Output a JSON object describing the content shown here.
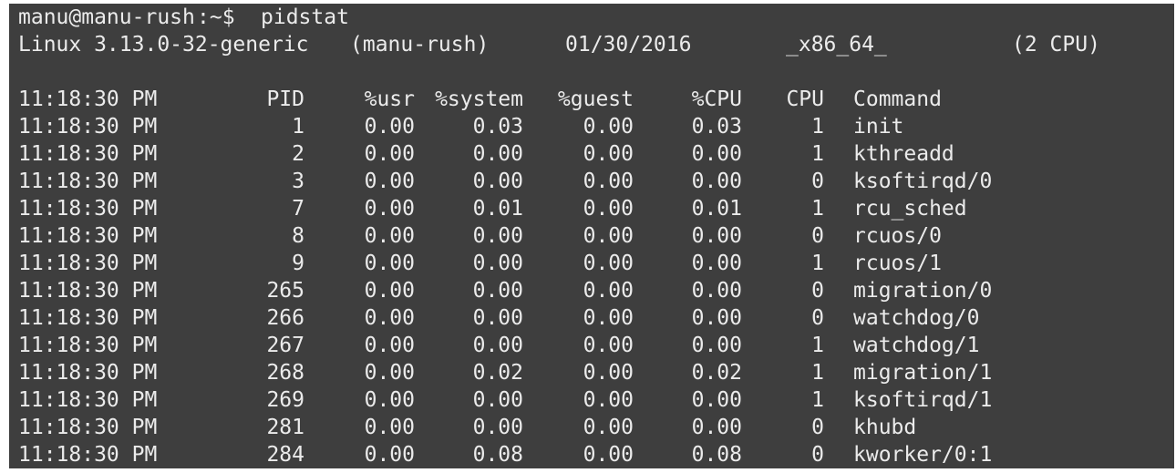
{
  "terminal": {
    "prompt_user": "manu@manu-rush",
    "prompt_path": ":~$",
    "command": "pidstat",
    "sys_info": {
      "kernel": "Linux 3.13.0-32-generic",
      "host": "(manu-rush)",
      "date": "01/30/2016",
      "arch": "_x86_64_",
      "cpus": "(2 CPU)"
    },
    "columns": {
      "time": "11:18:30 PM",
      "pid": "PID",
      "usr": "%usr",
      "system": "%system",
      "guest": "%guest",
      "cpu_pct": "%CPU",
      "cpu": "CPU",
      "command": "Command"
    },
    "rows": [
      {
        "time": "11:18:30 PM",
        "pid": "1",
        "usr": "0.00",
        "system": "0.03",
        "guest": "0.00",
        "cpu_pct": "0.03",
        "cpu": "1",
        "command": "init"
      },
      {
        "time": "11:18:30 PM",
        "pid": "2",
        "usr": "0.00",
        "system": "0.00",
        "guest": "0.00",
        "cpu_pct": "0.00",
        "cpu": "1",
        "command": "kthreadd"
      },
      {
        "time": "11:18:30 PM",
        "pid": "3",
        "usr": "0.00",
        "system": "0.00",
        "guest": "0.00",
        "cpu_pct": "0.00",
        "cpu": "0",
        "command": "ksoftirqd/0"
      },
      {
        "time": "11:18:30 PM",
        "pid": "7",
        "usr": "0.00",
        "system": "0.01",
        "guest": "0.00",
        "cpu_pct": "0.01",
        "cpu": "1",
        "command": "rcu_sched"
      },
      {
        "time": "11:18:30 PM",
        "pid": "8",
        "usr": "0.00",
        "system": "0.00",
        "guest": "0.00",
        "cpu_pct": "0.00",
        "cpu": "0",
        "command": "rcuos/0"
      },
      {
        "time": "11:18:30 PM",
        "pid": "9",
        "usr": "0.00",
        "system": "0.00",
        "guest": "0.00",
        "cpu_pct": "0.00",
        "cpu": "1",
        "command": "rcuos/1"
      },
      {
        "time": "11:18:30 PM",
        "pid": "265",
        "usr": "0.00",
        "system": "0.00",
        "guest": "0.00",
        "cpu_pct": "0.00",
        "cpu": "0",
        "command": "migration/0"
      },
      {
        "time": "11:18:30 PM",
        "pid": "266",
        "usr": "0.00",
        "system": "0.00",
        "guest": "0.00",
        "cpu_pct": "0.00",
        "cpu": "0",
        "command": "watchdog/0"
      },
      {
        "time": "11:18:30 PM",
        "pid": "267",
        "usr": "0.00",
        "system": "0.00",
        "guest": "0.00",
        "cpu_pct": "0.00",
        "cpu": "1",
        "command": "watchdog/1"
      },
      {
        "time": "11:18:30 PM",
        "pid": "268",
        "usr": "0.00",
        "system": "0.02",
        "guest": "0.00",
        "cpu_pct": "0.02",
        "cpu": "1",
        "command": "migration/1"
      },
      {
        "time": "11:18:30 PM",
        "pid": "269",
        "usr": "0.00",
        "system": "0.00",
        "guest": "0.00",
        "cpu_pct": "0.00",
        "cpu": "1",
        "command": "ksoftirqd/1"
      },
      {
        "time": "11:18:30 PM",
        "pid": "281",
        "usr": "0.00",
        "system": "0.00",
        "guest": "0.00",
        "cpu_pct": "0.00",
        "cpu": "0",
        "command": "khubd"
      },
      {
        "time": "11:18:30 PM",
        "pid": "284",
        "usr": "0.00",
        "system": "0.08",
        "guest": "0.00",
        "cpu_pct": "0.08",
        "cpu": "0",
        "command": "kworker/0:1"
      }
    ],
    "colors": {
      "background": "#3e3e3e",
      "foreground": "#ebebeb"
    }
  }
}
